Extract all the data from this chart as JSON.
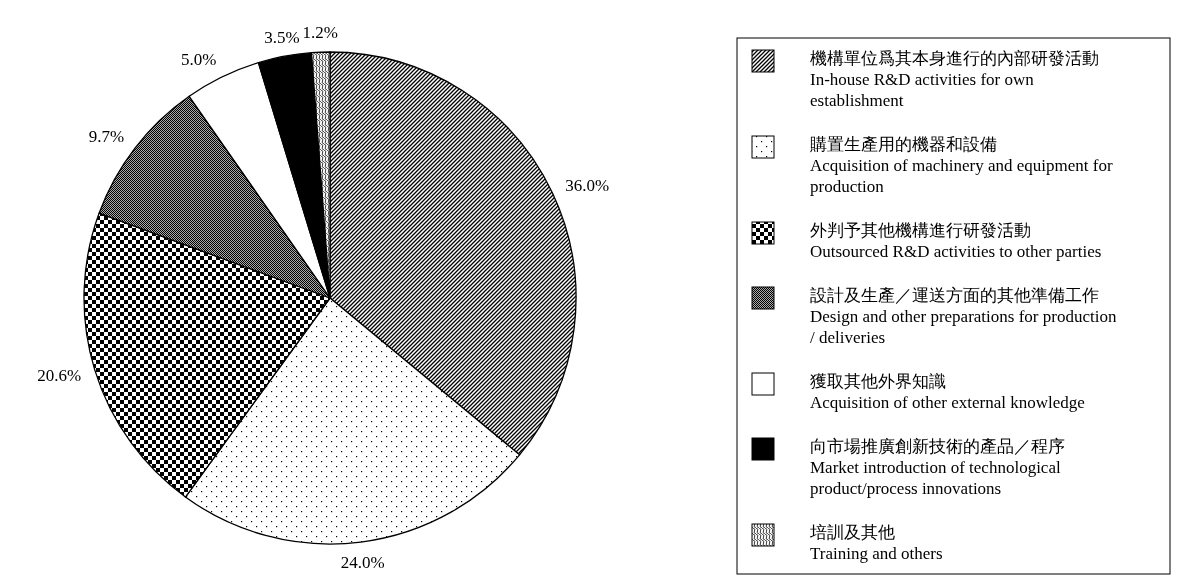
{
  "chart_data": {
    "type": "pie",
    "categories": [
      "機構單位爲其本身進行的內部研發活動\nIn-house R&D activities for own establishment",
      "購置生產用的機器和設備\nAcquisition of machinery and equipment for production",
      "外判予其他機構進行研發活動\nOutsourced R&D activities to other parties",
      "設計及生產／運送方面的其他準備工作\nDesign and other preparations for production / deliveries",
      "獲取其他外界知識\nAcquisition of other external knowledge",
      "向市場推廣創新技術的產品／程序\nMarket introduction of technological product/process innovations",
      "培訓及其他\nTraining and others"
    ],
    "values": [
      36.0,
      24.0,
      20.6,
      9.7,
      5.0,
      3.5,
      1.2
    ],
    "value_labels": [
      "36.0%",
      "24.0%",
      "20.6%",
      "9.7%",
      "5.0%",
      "3.5%",
      "1.2%"
    ],
    "colors": [
      "#000000",
      "#000000",
      "#000000",
      "#000000",
      "#ffffff",
      "#000000",
      "#000000"
    ],
    "legend": "right"
  }
}
